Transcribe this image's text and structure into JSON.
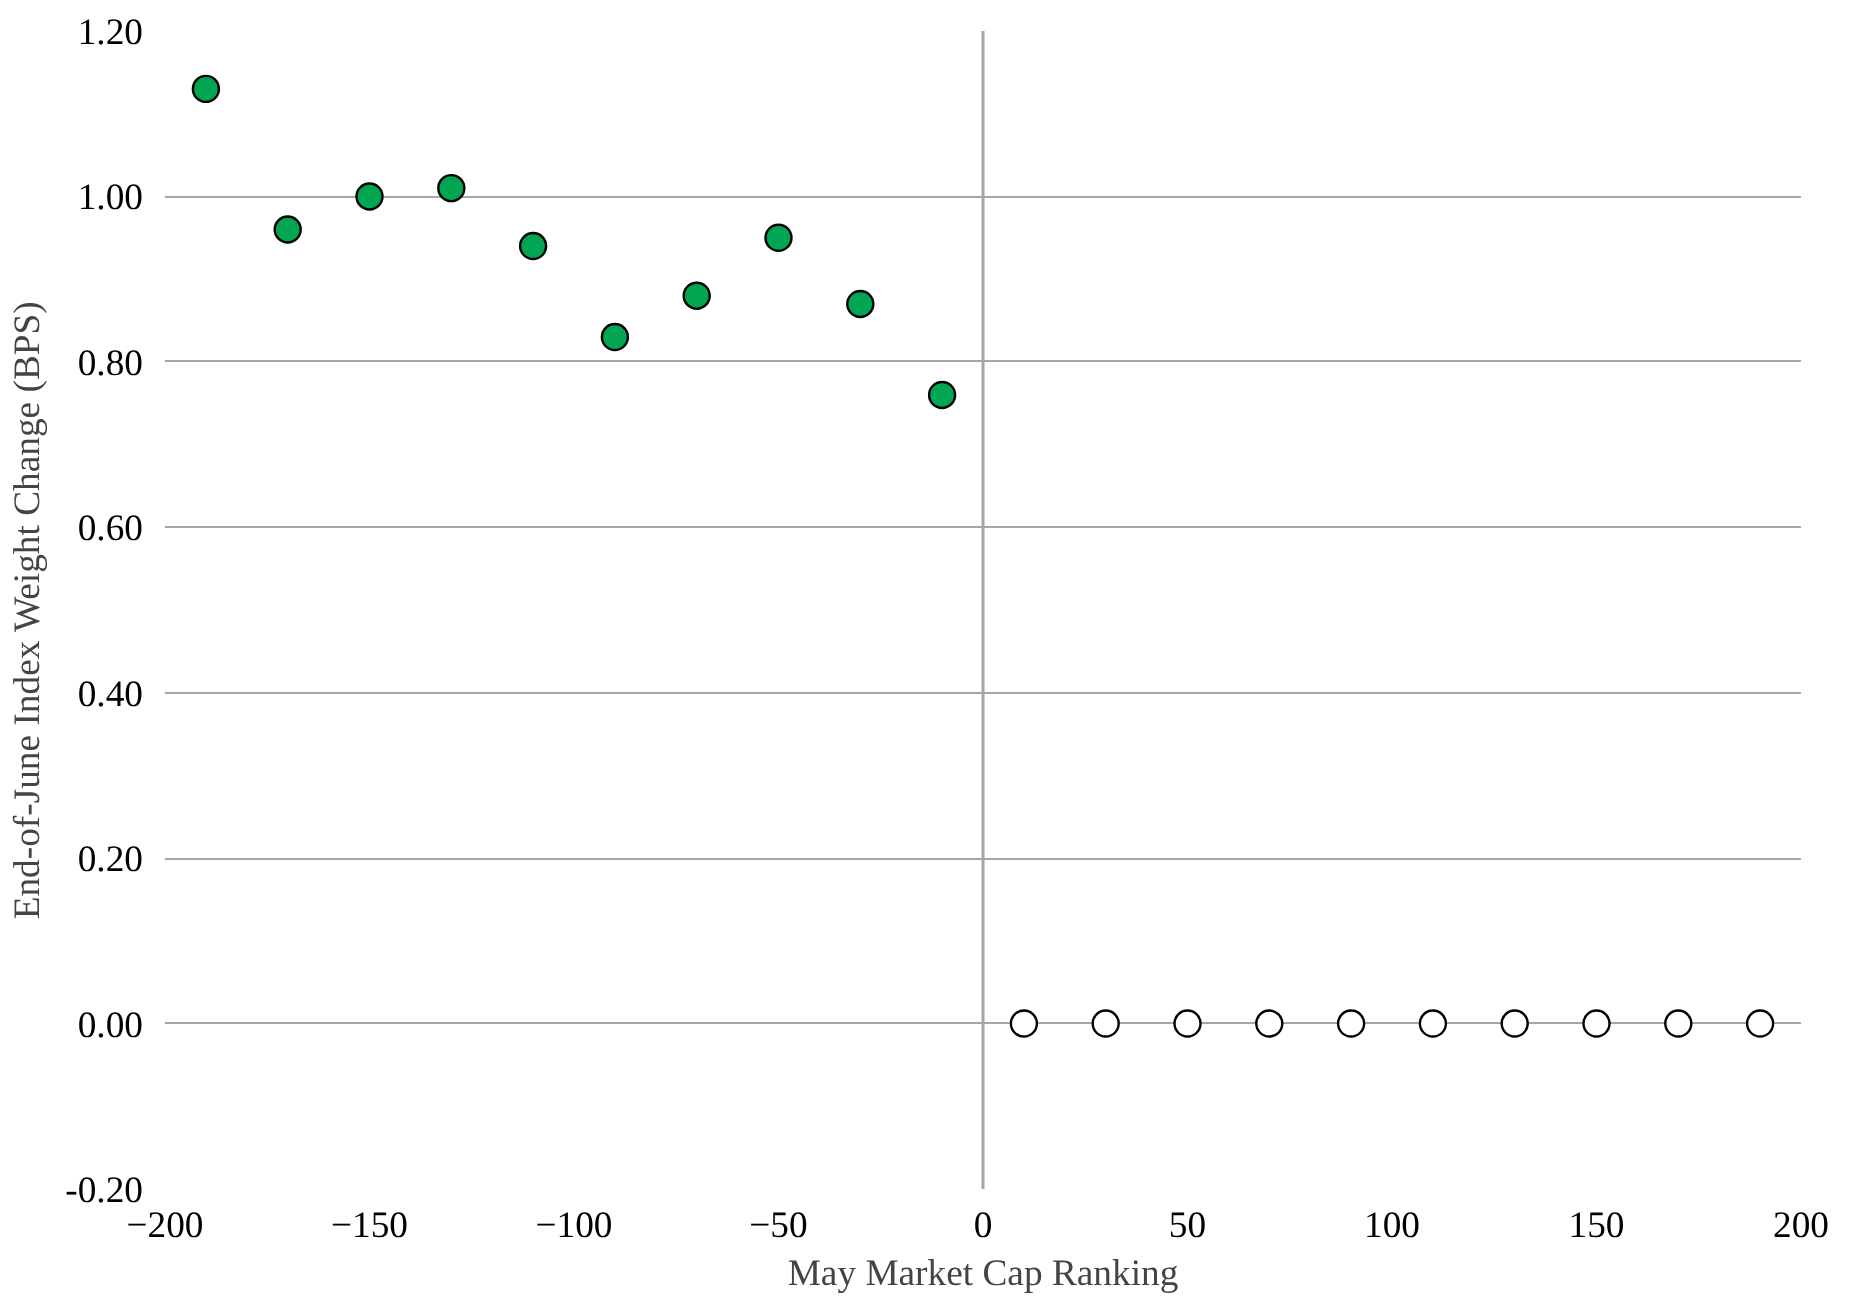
{
  "chart_data": {
    "type": "scatter",
    "xlabel": "May Market Cap Ranking",
    "ylabel": "End-of-June Index Weight Change (BPS)",
    "series": [
      {
        "color": "#00a651",
        "x": [
          -190,
          -170,
          -150,
          -130,
          -110,
          -90,
          -70,
          -50,
          -30,
          -10
        ],
        "values": [
          1.13,
          0.96,
          1.0,
          1.01,
          0.94,
          0.83,
          0.88,
          0.95,
          0.87,
          0.76
        ]
      },
      {
        "color": "#ffffff",
        "x": [
          10,
          30,
          50,
          70,
          90,
          110,
          130,
          150,
          170,
          190
        ],
        "values": [
          0.0,
          0.0,
          0.0,
          0.0,
          0.0,
          0.0,
          0.0,
          0.0,
          0.0,
          0.0
        ]
      }
    ],
    "xlim": [
      -200,
      200
    ],
    "xticks": [
      -200,
      -150,
      -100,
      -50,
      0,
      50,
      100,
      150,
      200
    ],
    "ylim": [
      -0.2,
      1.2
    ],
    "yticks": [
      {
        "value": -0.2,
        "label": "-0.20"
      },
      {
        "value": 0,
        "label": "0.00"
      },
      {
        "value": 0.2,
        "label": "0.20"
      },
      {
        "value": 0.4,
        "label": "0.40"
      },
      {
        "value": 0.6,
        "label": "0.60"
      },
      {
        "value": 0.8,
        "label": "0.80"
      },
      {
        "value": 1.0,
        "label": "1.00"
      },
      {
        "value": 1.2,
        "label": "1.20"
      }
    ],
    "ref_lines": [
      {
        "axis": "x",
        "value": 0,
        "color": "#a6a6a6"
      }
    ],
    "grid": "y",
    "marker": "circle"
  }
}
